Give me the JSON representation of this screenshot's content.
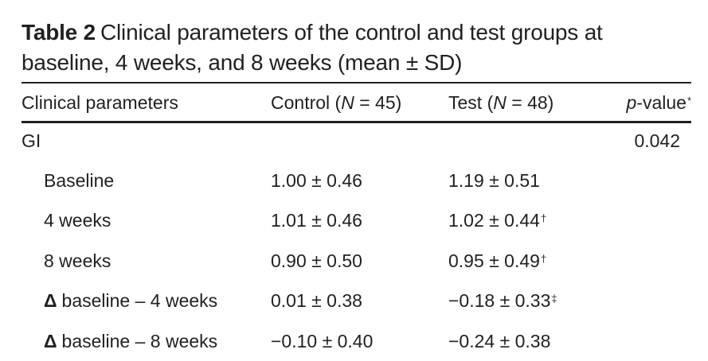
{
  "caption": {
    "label": "Table 2",
    "text": "Clinical parameters of the control and test groups at baseline, 4 weeks, and 8 weeks (mean ± SD)"
  },
  "header": {
    "param": "Clinical parameters",
    "control_prefix": "Control (",
    "control_n": "N",
    "control_suffix": " = 45)",
    "test_prefix": "Test (",
    "test_n": "N",
    "test_suffix": " = 48)",
    "p_italic": "p",
    "p_rest": "-value",
    "p_mark": "*"
  },
  "rows": [
    {
      "param": "GI",
      "control": "",
      "test": "",
      "test_mark": "",
      "p": "0.042"
    },
    {
      "param": "Baseline",
      "control": "1.00 ± 0.46",
      "test": "1.19 ± 0.51",
      "test_mark": "",
      "p": ""
    },
    {
      "param": "4 weeks",
      "control": "1.01 ± 0.46",
      "test": "1.02 ± 0.44",
      "test_mark": "†",
      "p": ""
    },
    {
      "param": "8 weeks",
      "control": "0.90 ± 0.50",
      "test": "0.95 ± 0.49",
      "test_mark": "†",
      "p": ""
    },
    {
      "param_symbol": "Δ",
      "param": "baseline – 4 weeks",
      "control": "0.01 ± 0.38",
      "test": "−0.18 ± 0.33",
      "test_mark": "‡",
      "p": ""
    },
    {
      "param_symbol": "Δ",
      "param": "baseline – 8 weeks",
      "control": "−0.10 ± 0.40",
      "test": "−0.24 ± 0.38",
      "test_mark": "",
      "p": ""
    }
  ]
}
